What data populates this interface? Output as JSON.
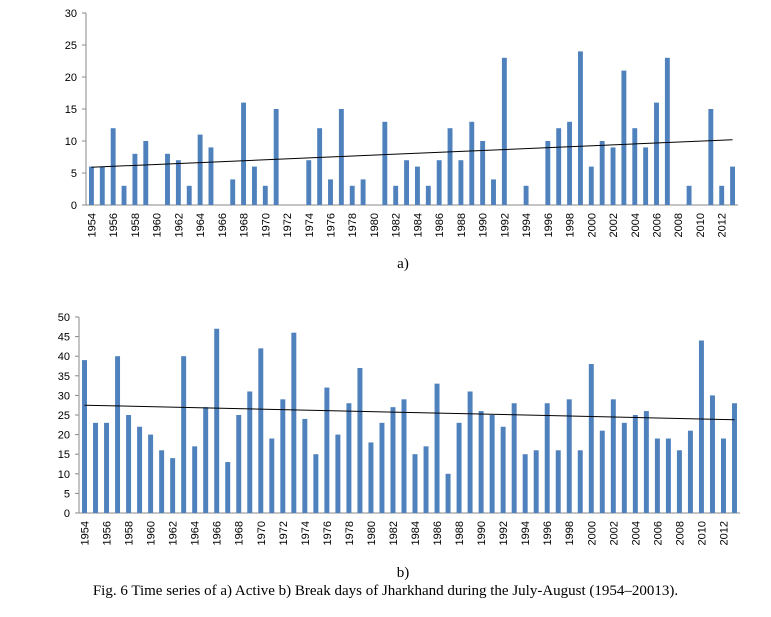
{
  "caption": "Fig. 6 Time series of a) Active b) Break days of Jharkhand during the July-August (1954–20013).",
  "colors": {
    "bar": "#4f81bd",
    "axis": "#888888",
    "trend": "#000000"
  },
  "chart_data": [
    {
      "type": "bar",
      "panel_label": "a)",
      "title": "",
      "xlabel": "",
      "ylabel": "",
      "ylim": [
        0,
        30
      ],
      "yticks": [
        0,
        5,
        10,
        15,
        20,
        25,
        30
      ],
      "grid": false,
      "trendline": {
        "type": "linear",
        "start": 5.9,
        "end": 10.2
      },
      "x_tick_labels": [
        "1954",
        "1956",
        "1958",
        "1960",
        "1962",
        "1964",
        "1966",
        "1968",
        "1970",
        "1972",
        "1974",
        "1976",
        "1978",
        "1980",
        "1982",
        "1984",
        "1986",
        "1988",
        "1990",
        "1992",
        "1994",
        "1996",
        "1998",
        "2000",
        "2002",
        "2004",
        "2006",
        "2008",
        "2010",
        "2012"
      ],
      "categories": [
        1954,
        1955,
        1956,
        1957,
        1958,
        1959,
        1960,
        1961,
        1962,
        1963,
        1964,
        1965,
        1966,
        1967,
        1968,
        1969,
        1970,
        1971,
        1972,
        1973,
        1974,
        1975,
        1976,
        1977,
        1978,
        1979,
        1980,
        1981,
        1982,
        1983,
        1984,
        1985,
        1986,
        1987,
        1988,
        1989,
        1990,
        1991,
        1992,
        1993,
        1994,
        1995,
        1996,
        1997,
        1998,
        1999,
        2000,
        2001,
        2002,
        2003,
        2004,
        2005,
        2006,
        2007,
        2008,
        2009,
        2010,
        2011,
        2012,
        2013
      ],
      "values": [
        6,
        6,
        12,
        3,
        8,
        10,
        0,
        8,
        7,
        3,
        11,
        9,
        0,
        4,
        16,
        6,
        3,
        15,
        0,
        0,
        7,
        12,
        4,
        15,
        3,
        4,
        0,
        13,
        3,
        7,
        6,
        3,
        7,
        12,
        7,
        13,
        10,
        4,
        23,
        0,
        3,
        0,
        10,
        12,
        13,
        24,
        6,
        10,
        9,
        21,
        12,
        9,
        16,
        23,
        0,
        3,
        0,
        15,
        3,
        6
      ]
    },
    {
      "type": "bar",
      "panel_label": "b)",
      "title": "",
      "xlabel": "",
      "ylabel": "",
      "ylim": [
        0,
        50
      ],
      "yticks": [
        0,
        5,
        10,
        15,
        20,
        25,
        30,
        35,
        40,
        45,
        50
      ],
      "grid": false,
      "trendline": {
        "type": "linear",
        "start": 27.5,
        "end": 23.8
      },
      "x_tick_labels": [
        "1954",
        "1956",
        "1958",
        "1960",
        "1962",
        "1964",
        "1966",
        "1968",
        "1970",
        "1972",
        "1974",
        "1976",
        "1978",
        "1980",
        "1982",
        "1984",
        "1986",
        "1988",
        "1990",
        "1992",
        "1994",
        "1996",
        "1998",
        "2000",
        "2002",
        "2004",
        "2006",
        "2008",
        "2010",
        "2012"
      ],
      "categories": [
        1954,
        1955,
        1956,
        1957,
        1958,
        1959,
        1960,
        1961,
        1962,
        1963,
        1964,
        1965,
        1966,
        1967,
        1968,
        1969,
        1970,
        1971,
        1972,
        1973,
        1974,
        1975,
        1976,
        1977,
        1978,
        1979,
        1980,
        1981,
        1982,
        1983,
        1984,
        1985,
        1986,
        1987,
        1988,
        1989,
        1990,
        1991,
        1992,
        1993,
        1994,
        1995,
        1996,
        1997,
        1998,
        1999,
        2000,
        2001,
        2002,
        2003,
        2004,
        2005,
        2006,
        2007,
        2008,
        2009,
        2010,
        2011,
        2012,
        2013
      ],
      "values": [
        39,
        23,
        23,
        40,
        25,
        22,
        20,
        16,
        14,
        40,
        17,
        27,
        47,
        13,
        25,
        31,
        42,
        19,
        29,
        46,
        24,
        15,
        32,
        20,
        28,
        37,
        18,
        23,
        27,
        29,
        15,
        17,
        33,
        10,
        23,
        31,
        26,
        25,
        22,
        28,
        15,
        16,
        28,
        16,
        29,
        16,
        38,
        21,
        29,
        23,
        25,
        26,
        19,
        19,
        16,
        21,
        44,
        30,
        19,
        28
      ]
    }
  ]
}
